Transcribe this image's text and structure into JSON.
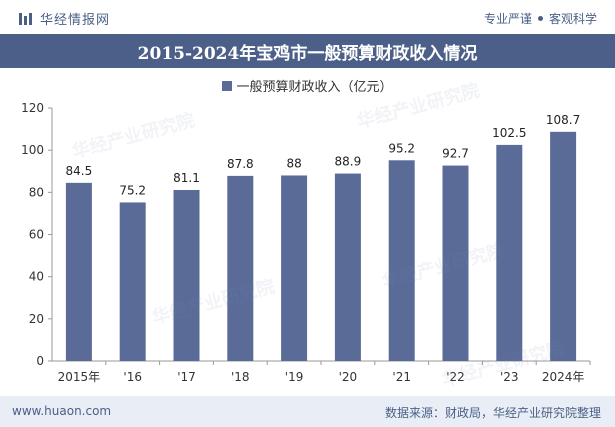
{
  "header": {
    "brand_name": "华经情报网",
    "tag_1": "专业严谨",
    "tag_2": "客观科学"
  },
  "footer": {
    "website": "www.huaon.com",
    "source": "数据来源：财政局，华经产业研究院整理"
  },
  "watermark_text": "华经产业研究院",
  "colors": {
    "bar": "#5a6b98",
    "title_bar": "#4b5f89",
    "footer_bg": "#e9eef6"
  },
  "chart_data": {
    "type": "bar",
    "title": "2015-2024年宝鸡市一般预算财政收入情况",
    "categories": [
      "2015年",
      "'16",
      "'17",
      "'18",
      "'19",
      "'20",
      "'21",
      "'22",
      "'23",
      "2024年"
    ],
    "series": [
      {
        "name": "一般预算财政收入（亿元）",
        "values": [
          84.5,
          75.2,
          81.1,
          87.8,
          88,
          88.9,
          95.2,
          92.7,
          102.5,
          108.7
        ]
      }
    ],
    "value_labels": [
      "84.5",
      "75.2",
      "81.1",
      "87.8",
      "88",
      "88.9",
      "95.2",
      "92.7",
      "102.5",
      "108.7"
    ],
    "ylim": [
      0,
      120
    ],
    "yticks": [
      0,
      20,
      40,
      60,
      80,
      100,
      120
    ],
    "legend_position": "top-center",
    "grid": false
  }
}
